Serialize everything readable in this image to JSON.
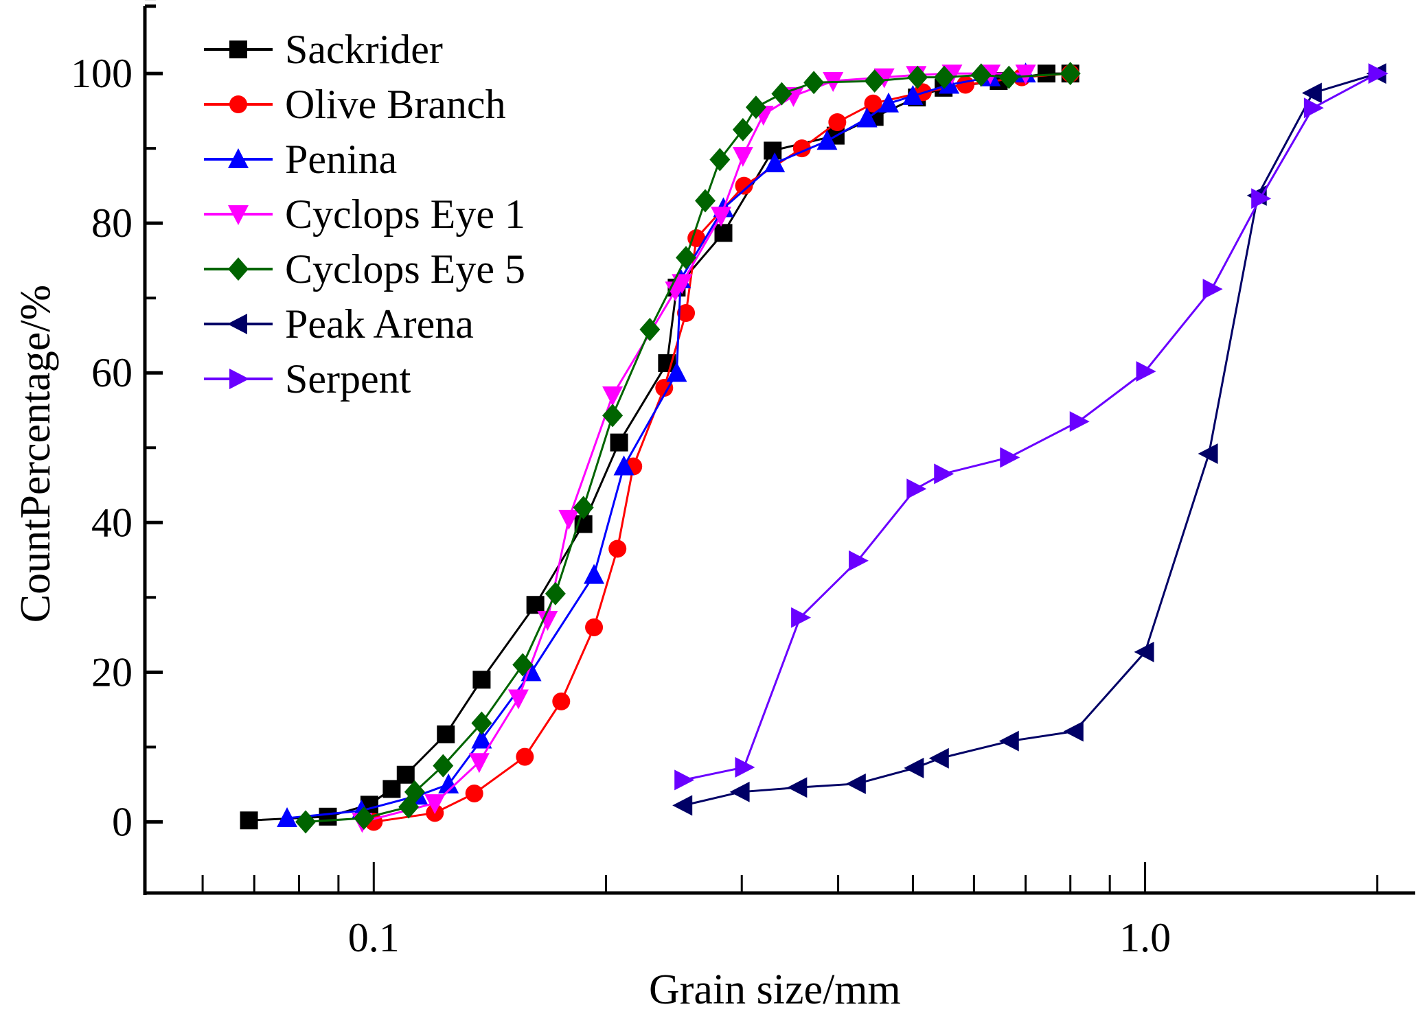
{
  "chart_data": {
    "type": "line",
    "title": "",
    "xlabel": "Grain size/mm",
    "ylabel": "CountPercentage/%",
    "xscale": "log",
    "xlim": [
      0.0505,
      2.24
    ],
    "ylim": [
      -9.5,
      109
    ],
    "grid": false,
    "legend_position": "top-left",
    "x_ticks": [
      {
        "value": 0.1,
        "label": "0.1"
      },
      {
        "value": 1.0,
        "label": "1.0"
      }
    ],
    "x_minor_ticks": [
      0.06,
      0.07,
      0.08,
      0.09,
      0.2,
      0.3,
      0.4,
      0.5,
      0.6,
      0.7,
      0.8,
      0.9,
      2.0
    ],
    "y_ticks": [
      {
        "value": 0,
        "label": "0"
      },
      {
        "value": 20,
        "label": "20"
      },
      {
        "value": 40,
        "label": "40"
      },
      {
        "value": 60,
        "label": "60"
      },
      {
        "value": 80,
        "label": "80"
      },
      {
        "value": 100,
        "label": "100"
      }
    ],
    "y_minor_ticks": [
      10,
      30,
      50,
      70,
      90,
      110
    ],
    "series": [
      {
        "name": "Sackrider",
        "color": "#000000",
        "marker": "square",
        "x": [
          0.0689,
          0.0872,
          0.0987,
          0.1055,
          0.11,
          0.124,
          0.138,
          0.162,
          0.187,
          0.208,
          0.24,
          0.247,
          0.284,
          0.329,
          0.397,
          0.446,
          0.506,
          0.548,
          0.646,
          0.745,
          0.8
        ],
        "y": [
          0.2,
          0.7,
          2.3,
          4.4,
          6.3,
          11.7,
          19.0,
          29.0,
          39.8,
          50.7,
          61.3,
          71.4,
          78.7,
          89.7,
          91.7,
          94.2,
          96.8,
          98.1,
          99.0,
          100,
          100
        ]
      },
      {
        "name": "Olive Branch",
        "color": "#ff0000",
        "marker": "circle",
        "x": [
          0.1,
          0.12,
          0.135,
          0.157,
          0.175,
          0.193,
          0.207,
          0.217,
          0.238,
          0.254,
          0.262,
          0.302,
          0.359,
          0.399,
          0.444,
          0.515,
          0.585,
          0.692,
          0.8
        ],
        "y": [
          0,
          1.2,
          3.8,
          8.7,
          16.1,
          26.0,
          36.5,
          47.5,
          58.0,
          68.0,
          78.0,
          85.0,
          90.0,
          93.5,
          96.0,
          97.5,
          98.5,
          99.5,
          100
        ]
      },
      {
        "name": "Penina",
        "color": "#0000ff",
        "marker": "triangle-up",
        "x": [
          0.0772,
          0.0964,
          0.114,
          0.125,
          0.138,
          0.16,
          0.193,
          0.211,
          0.247,
          0.25,
          0.284,
          0.331,
          0.387,
          0.436,
          0.465,
          0.5,
          0.557,
          0.63,
          0.7
        ],
        "y": [
          0.5,
          1.5,
          3.5,
          5.0,
          11.0,
          20.0,
          33.0,
          47.5,
          60.0,
          72.5,
          82.0,
          88.0,
          91.0,
          94.0,
          96.0,
          97.0,
          98.5,
          99.5,
          100
        ]
      },
      {
        "name": "Cyclops Eye 1",
        "color": "#ff00ff",
        "marker": "triangle-down",
        "x": [
          0.0966,
          0.12,
          0.137,
          0.154,
          0.168,
          0.179,
          0.204,
          0.246,
          0.251,
          0.282,
          0.301,
          0.32,
          0.35,
          0.394,
          0.459,
          0.505,
          0.562,
          0.63,
          0.7
        ],
        "y": [
          0,
          2.5,
          8.0,
          16.5,
          27.0,
          40.5,
          57.0,
          71.0,
          72.0,
          81.0,
          89.0,
          94.5,
          97.0,
          99.0,
          99.5,
          99.8,
          100,
          100,
          100
        ]
      },
      {
        "name": "Cyclops Eye 5",
        "color": "#006400",
        "marker": "diamond",
        "x": [
          0.0816,
          0.0971,
          0.111,
          0.113,
          0.123,
          0.138,
          0.156,
          0.172,
          0.187,
          0.204,
          0.228,
          0.254,
          0.269,
          0.281,
          0.301,
          0.313,
          0.338,
          0.372,
          0.446,
          0.507,
          0.549,
          0.613,
          0.666,
          0.8
        ],
        "y": [
          0,
          0.5,
          2.0,
          4.0,
          7.5,
          13.2,
          21.0,
          30.5,
          42.0,
          54.3,
          65.8,
          75.4,
          83.0,
          88.5,
          92.5,
          95.5,
          97.3,
          98.8,
          99.0,
          99.5,
          99.5,
          99.8,
          99.5,
          100
        ]
      },
      {
        "name": "Peak Arena",
        "color": "#000066",
        "marker": "triangle-left",
        "x": [
          0.252,
          0.299,
          0.355,
          0.423,
          0.503,
          0.542,
          0.668,
          0.81,
          1.0,
          1.21,
          1.4,
          1.65,
          2.0
        ],
        "y": [
          2.2,
          4.0,
          4.6,
          5.1,
          7.2,
          8.5,
          10.8,
          12.1,
          22.7,
          49.2,
          83.7,
          97.4,
          100
        ]
      },
      {
        "name": "Serpent",
        "color": "#6a00ff",
        "marker": "triangle-right",
        "x": [
          0.252,
          0.302,
          0.357,
          0.424,
          0.504,
          0.547,
          0.666,
          0.82,
          1.0,
          1.22,
          1.41,
          1.65,
          2.0
        ],
        "y": [
          5.6,
          7.3,
          27.3,
          34.9,
          44.5,
          46.5,
          48.7,
          53.5,
          60.2,
          71.2,
          83.3,
          95.4,
          100
        ]
      }
    ]
  }
}
